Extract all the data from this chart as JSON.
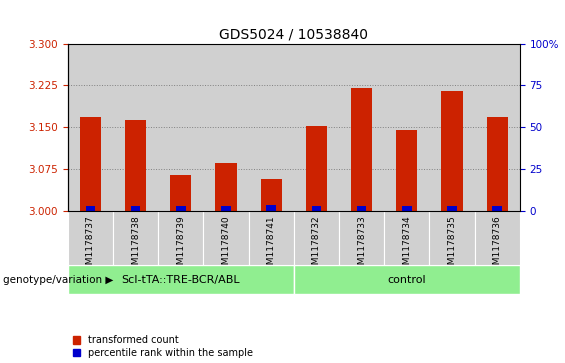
{
  "title": "GDS5024 / 10538840",
  "samples": [
    "GSM1178737",
    "GSM1178738",
    "GSM1178739",
    "GSM1178740",
    "GSM1178741",
    "GSM1178732",
    "GSM1178733",
    "GSM1178734",
    "GSM1178735",
    "GSM1178736"
  ],
  "red_values": [
    3.168,
    3.162,
    3.063,
    3.085,
    3.057,
    3.152,
    3.22,
    3.145,
    3.215,
    3.168
  ],
  "blue_heights": [
    0.009,
    0.009,
    0.009,
    0.009,
    0.01,
    0.009,
    0.009,
    0.009,
    0.009,
    0.009
  ],
  "base": 3.0,
  "ylim": [
    3.0,
    3.3
  ],
  "yticks_left": [
    3.0,
    3.075,
    3.15,
    3.225,
    3.3
  ],
  "yticks_right": [
    0,
    25,
    50,
    75,
    100
  ],
  "grid_values": [
    3.075,
    3.15,
    3.225
  ],
  "group1_label": "ScI-tTA::TRE-BCR/ABL",
  "group2_label": "control",
  "group1_count": 5,
  "group2_count": 5,
  "group_bg_color": "#90EE90",
  "bar_bg_color": "#d0d0d0",
  "red_color": "#cc2200",
  "blue_color": "#0000cc",
  "ylabel_left_color": "#cc2200",
  "ylabel_right_color": "#0000cc",
  "genotype_label": "genotype/variation",
  "legend_red": "transformed count",
  "legend_blue": "percentile rank within the sample",
  "bar_width": 0.85,
  "fig_width": 5.65,
  "fig_height": 3.63,
  "title_fontsize": 10
}
